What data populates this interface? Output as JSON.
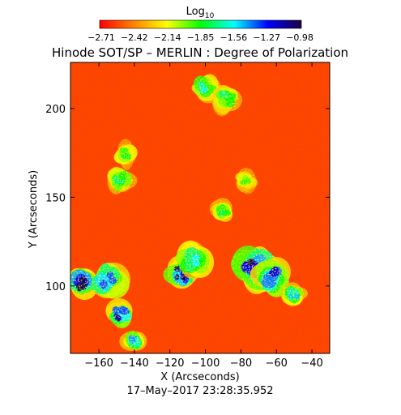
{
  "chart_data": {
    "type": "heatmap",
    "title": "Hinode SOT/SP – MERLIN : Degree of Polarization",
    "colorbar": {
      "title_base": "Log",
      "title_sub": "10",
      "ticks": [
        "−2.71",
        "−2.42",
        "−2.14",
        "−1.85",
        "−1.56",
        "−1.27",
        "−0.98"
      ],
      "range": [
        -2.71,
        -0.98
      ],
      "colors": [
        "#ff0000",
        "#ff8000",
        "#ffff00",
        "#00ff00",
        "#00ffff",
        "#0000ff",
        "#1a0040"
      ]
    },
    "xlabel": "X (Arcseconds)",
    "ylabel": "Y (Arcseconds)",
    "xlim": [
      -176,
      -30
    ],
    "ylim": [
      62,
      226
    ],
    "xticks": [
      -160,
      -140,
      -120,
      -100,
      -80,
      -60,
      -40
    ],
    "yticks": [
      100,
      150,
      200
    ],
    "xtick_labels": [
      "−160",
      "−140",
      "−120",
      "−100",
      "−80",
      "−60",
      "−40"
    ],
    "ytick_labels": [
      "100",
      "150",
      "200"
    ],
    "background_level": -2.55,
    "regions": [
      {
        "x": -170,
        "y": 102,
        "peak": -0.98,
        "spread": 7
      },
      {
        "x": -155,
        "y": 104,
        "peak": -1.35,
        "spread": 8
      },
      {
        "x": -148,
        "y": 84,
        "peak": -1.15,
        "spread": 6
      },
      {
        "x": -113,
        "y": 108,
        "peak": -1.05,
        "spread": 7
      },
      {
        "x": -106,
        "y": 115,
        "peak": -1.55,
        "spread": 8
      },
      {
        "x": -72,
        "y": 110,
        "peak": -1.0,
        "spread": 9
      },
      {
        "x": -62,
        "y": 105,
        "peak": -1.2,
        "spread": 8
      },
      {
        "x": -90,
        "y": 142,
        "peak": -1.75,
        "spread": 5
      },
      {
        "x": -100,
        "y": 212,
        "peak": -1.6,
        "spread": 6
      },
      {
        "x": -88,
        "y": 206,
        "peak": -1.7,
        "spread": 6
      },
      {
        "x": -145,
        "y": 174,
        "peak": -1.8,
        "spread": 5
      },
      {
        "x": -148,
        "y": 160,
        "peak": -1.7,
        "spread": 6
      },
      {
        "x": -140,
        "y": 69,
        "peak": -1.45,
        "spread": 5
      },
      {
        "x": -78,
        "y": 160,
        "peak": -1.9,
        "spread": 5
      },
      {
        "x": -50,
        "y": 95,
        "peak": -1.5,
        "spread": 5
      }
    ],
    "timestamp": "17–May–2017 23:28:35.952"
  }
}
